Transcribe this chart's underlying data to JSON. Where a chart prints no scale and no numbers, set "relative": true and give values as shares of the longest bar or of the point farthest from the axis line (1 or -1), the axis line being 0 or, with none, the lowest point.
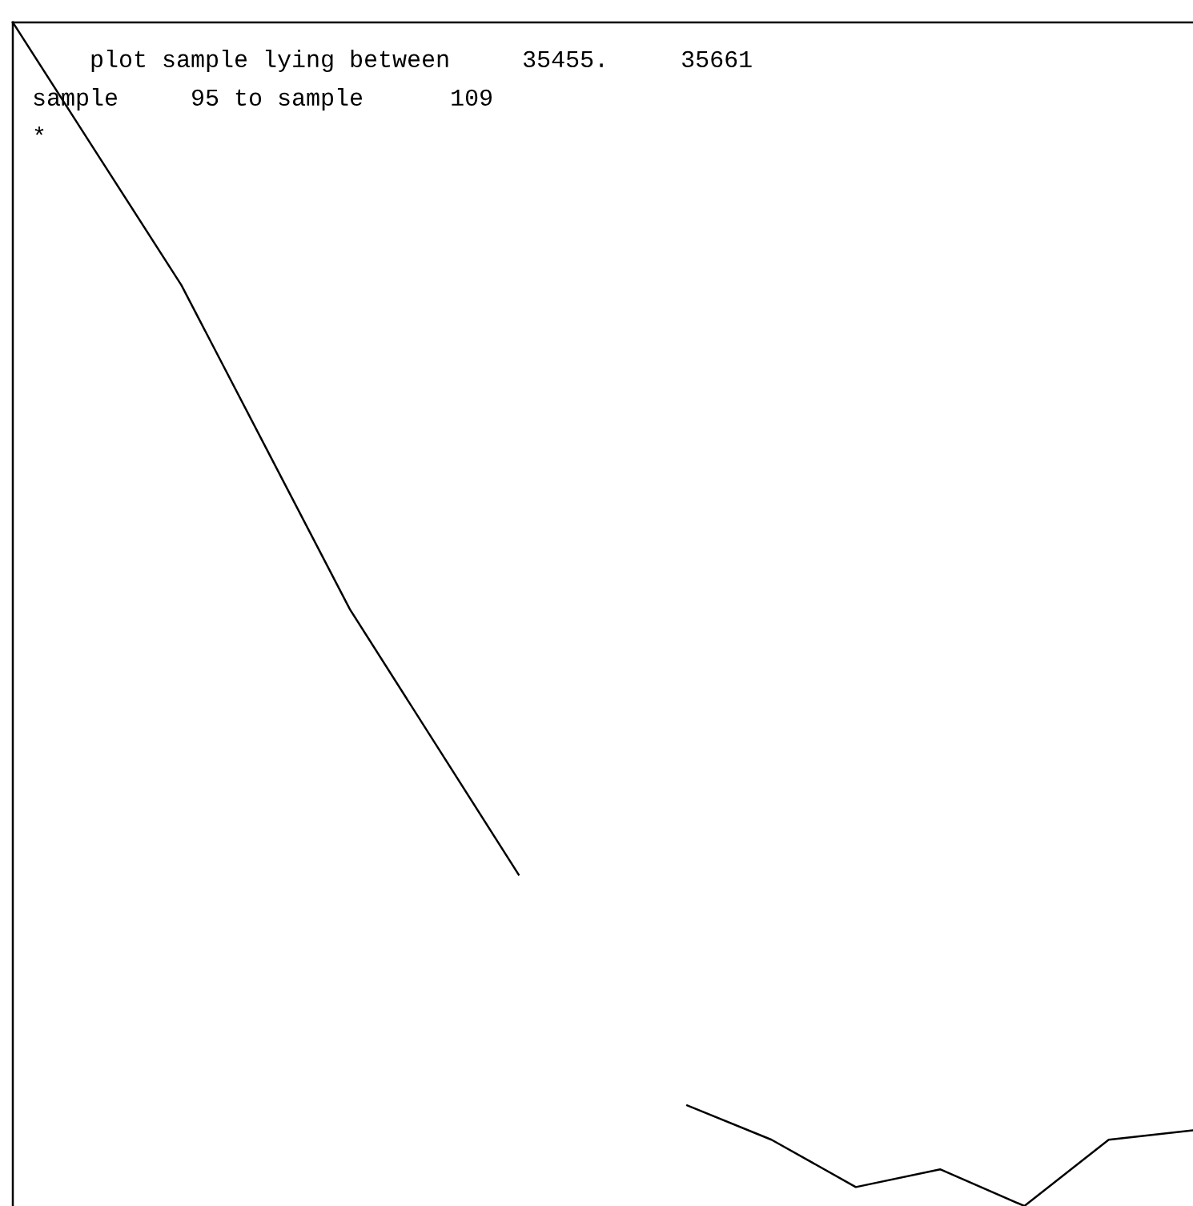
{
  "chart_data": {
    "type": "line",
    "relative": true,
    "title": "    plot sample lying between     35455.     35661",
    "subtitle": "sample     95 to sample      109",
    "annotations": [
      "*"
    ],
    "categories": [
      null,
      null,
      null,
      null,
      null,
      null,
      null,
      null,
      null,
      null,
      null,
      null,
      null,
      null,
      null
    ],
    "series": [
      {
        "color": "#000000",
        "values": [
          1,
          0.889,
          0.778,
          0.641,
          0.504,
          0.392,
          0.28,
          null,
          0.085,
          0.056,
          0.016,
          0.031,
          0,
          0.056,
          0.064
        ]
      }
    ],
    "grid": false,
    "legend": false,
    "marker": "none",
    "line_style": "solid"
  }
}
